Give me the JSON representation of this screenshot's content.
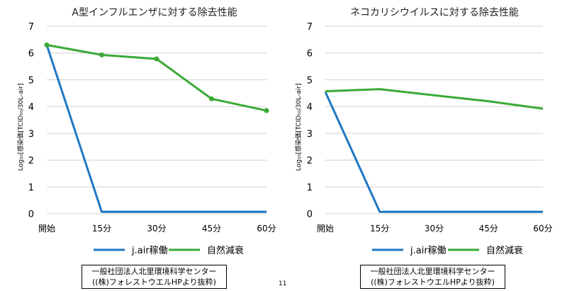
{
  "page_number": "11",
  "colors": {
    "jair": "#1f77c4",
    "natural": "#3aaa35",
    "grid": "#d0d0d0"
  },
  "chart_data": [
    {
      "type": "line",
      "title": "A型インフルエンザに対する除去性能",
      "ylabel": "Log₁₀[感染価[TCID₅₀/30L-air]",
      "categories": [
        "開始",
        "15分",
        "30分",
        "45分",
        "60分"
      ],
      "yticks": [
        "0",
        "1",
        "2",
        "3",
        "4",
        "5",
        "6",
        "7"
      ],
      "ylim": [
        0,
        7
      ],
      "grid": true,
      "legend_position": "bottom",
      "series": [
        {
          "name": "j.air稼働",
          "color": "#1f77c4",
          "markers": false,
          "values": [
            6.3,
            0.07,
            0.07,
            0.07,
            0.07
          ]
        },
        {
          "name": "自然減衰",
          "color": "#3aaa35",
          "markers": true,
          "values": [
            6.3,
            5.93,
            5.78,
            4.29,
            3.85
          ]
        }
      ],
      "source": [
        "一般社団法人北里環境科学センター",
        "((株)フォレストウエルHPより抜粋)"
      ]
    },
    {
      "type": "line",
      "title": "ネコカリシウイルスに対する除去性能",
      "ylabel": "Log₁₀[感染価[TCID₅₀/30L-air]",
      "categories": [
        "開始",
        "15分",
        "30分",
        "45分",
        "60分"
      ],
      "yticks": [
        "0",
        "1",
        "2",
        "3",
        "4",
        "5",
        "6",
        "7"
      ],
      "ylim": [
        0,
        7
      ],
      "grid": true,
      "legend_position": "bottom",
      "series": [
        {
          "name": "j.air稼働",
          "color": "#1f77c4",
          "markers": false,
          "values": [
            4.55,
            0.07,
            0.07,
            0.07,
            0.07
          ]
        },
        {
          "name": "自然減衰",
          "color": "#3aaa35",
          "markers": false,
          "values": [
            4.57,
            4.65,
            4.42,
            4.2,
            3.92
          ]
        }
      ],
      "source": [
        "一般社団法人北里環境科学センター",
        "((株)フォレストウエルHPより抜粋)"
      ]
    }
  ]
}
